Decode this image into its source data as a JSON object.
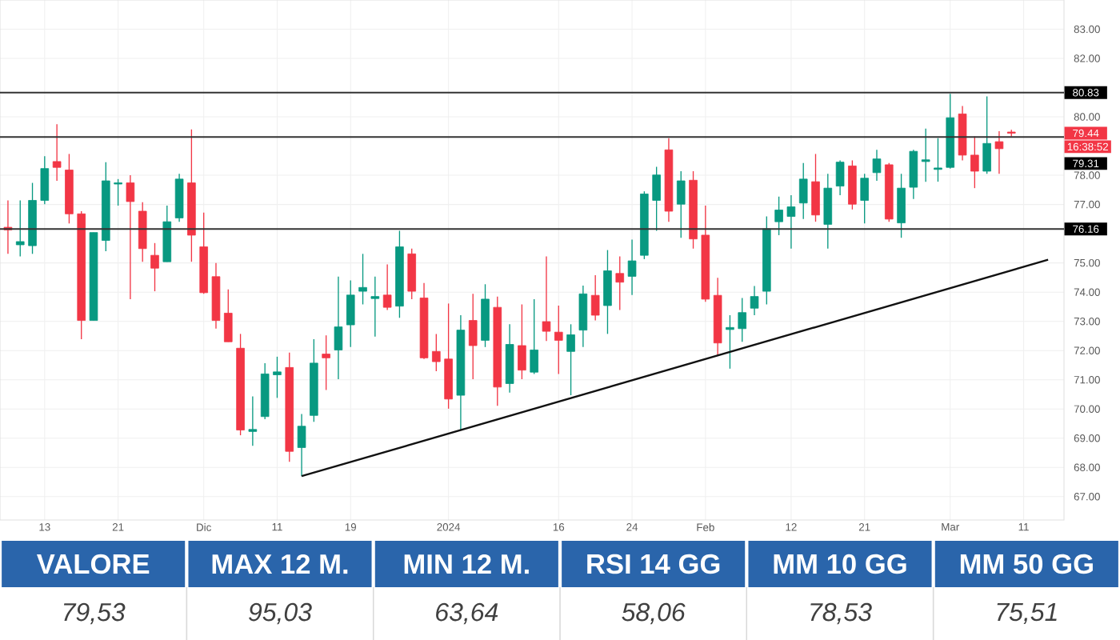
{
  "chart_data": {
    "type": "candlestick",
    "categories": [
      null,
      null,
      null,
      "13",
      null,
      null,
      null,
      null,
      null,
      "21",
      null,
      null,
      null,
      null,
      null,
      null,
      "Dic",
      null,
      null,
      null,
      null,
      null,
      "11",
      null,
      null,
      null,
      null,
      null,
      "19",
      null,
      null,
      null,
      null,
      null,
      null,
      null,
      "2024",
      null,
      null,
      null,
      null,
      null,
      null,
      null,
      null,
      "16",
      null,
      null,
      null,
      null,
      null,
      "24",
      null,
      null,
      null,
      null,
      null,
      "Feb",
      null,
      null,
      null,
      null,
      null,
      null,
      "12",
      null,
      null,
      null,
      null,
      null,
      "21",
      null,
      null,
      null,
      null,
      null,
      null,
      "Mar",
      null,
      null,
      null,
      null,
      null,
      "11",
      null,
      null,
      null
    ],
    "ohlc": [
      [
        76.22,
        77.14,
        75.31,
        76.13
      ],
      [
        75.62,
        77.14,
        75.22,
        75.73
      ],
      [
        75.59,
        77.74,
        75.31,
        77.14
      ],
      [
        77.14,
        78.65,
        77.01,
        78.23
      ],
      [
        78.47,
        79.75,
        77.81,
        78.27
      ],
      [
        78.18,
        78.73,
        76.35,
        76.68
      ],
      [
        76.68,
        76.77,
        72.39,
        73.03
      ],
      [
        73.03,
        76.04,
        73.03,
        76.04
      ],
      [
        75.77,
        78.45,
        75.4,
        77.81
      ],
      [
        77.7,
        77.87,
        76.96,
        77.74
      ],
      [
        77.74,
        78.0,
        73.76,
        77.1
      ],
      [
        76.77,
        77.08,
        75.04,
        75.49
      ],
      [
        75.26,
        75.68,
        74.03,
        74.82
      ],
      [
        75.04,
        76.96,
        75.04,
        76.41
      ],
      [
        76.54,
        78.05,
        76.41,
        77.87
      ],
      [
        77.74,
        79.57,
        75.04,
        75.95
      ],
      [
        75.55,
        76.72,
        73.94,
        73.98
      ],
      [
        74.53,
        75.0,
        72.75,
        73.03
      ],
      [
        73.28,
        74.09,
        72.3,
        72.3
      ],
      [
        72.08,
        72.57,
        69.1,
        69.28
      ],
      [
        69.23,
        70.43,
        68.74,
        69.3
      ],
      [
        69.74,
        71.57,
        69.65,
        71.2
      ],
      [
        71.17,
        71.79,
        70.38,
        71.27
      ],
      [
        71.42,
        71.93,
        68.19,
        68.55
      ],
      [
        68.68,
        69.83,
        67.7,
        69.41
      ],
      [
        69.78,
        72.39,
        69.56,
        71.57
      ],
      [
        71.88,
        72.52,
        70.65,
        71.75
      ],
      [
        72.02,
        74.53,
        71.02,
        72.81
      ],
      [
        72.88,
        74.4,
        72.12,
        73.9
      ],
      [
        74.03,
        75.31,
        73.58,
        74.16
      ],
      [
        73.78,
        74.53,
        72.48,
        73.85
      ],
      [
        73.9,
        74.95,
        73.39,
        73.48
      ],
      [
        73.52,
        76.1,
        73.12,
        75.55
      ],
      [
        75.31,
        75.49,
        73.76,
        74.03
      ],
      [
        73.8,
        74.31,
        71.71,
        71.75
      ],
      [
        71.97,
        72.57,
        71.29,
        71.62
      ],
      [
        71.71,
        73.61,
        70.01,
        70.34
      ],
      [
        70.47,
        73.21,
        69.28,
        72.7
      ],
      [
        73.03,
        73.94,
        71.02,
        72.17
      ],
      [
        72.35,
        74.27,
        72.12,
        73.76
      ],
      [
        73.48,
        73.85,
        70.11,
        70.75
      ],
      [
        70.87,
        72.9,
        70.56,
        72.21
      ],
      [
        72.17,
        73.58,
        71.02,
        71.33
      ],
      [
        71.26,
        73.76,
        71.2,
        72.02
      ],
      [
        72.99,
        75.22,
        72.33,
        72.66
      ],
      [
        72.63,
        73.54,
        71.2,
        72.35
      ],
      [
        71.97,
        72.9,
        70.47,
        72.54
      ],
      [
        72.7,
        74.22,
        72.12,
        73.94
      ],
      [
        73.89,
        74.58,
        73.03,
        73.21
      ],
      [
        73.54,
        75.44,
        72.57,
        74.73
      ],
      [
        74.64,
        75.22,
        73.39,
        74.34
      ],
      [
        74.54,
        75.8,
        73.9,
        75.07
      ],
      [
        75.26,
        77.45,
        75.13,
        77.36
      ],
      [
        77.14,
        78.29,
        76.1,
        78.01
      ],
      [
        78.87,
        79.27,
        76.41,
        76.77
      ],
      [
        77.01,
        78.14,
        75.86,
        77.81
      ],
      [
        77.83,
        78.14,
        75.49,
        75.82
      ],
      [
        75.95,
        76.96,
        73.67,
        73.76
      ],
      [
        73.89,
        74.49,
        71.84,
        72.26
      ],
      [
        72.72,
        73.21,
        71.38,
        72.79
      ],
      [
        72.75,
        73.8,
        72.3,
        73.3
      ],
      [
        73.45,
        74.21,
        73.21,
        73.85
      ],
      [
        74.03,
        76.59,
        73.58,
        76.17
      ],
      [
        76.41,
        77.27,
        75.95,
        76.81
      ],
      [
        76.59,
        77.32,
        75.49,
        76.92
      ],
      [
        77.05,
        78.42,
        76.5,
        77.87
      ],
      [
        77.78,
        78.73,
        76.41,
        76.64
      ],
      [
        76.32,
        78.05,
        75.49,
        77.56
      ],
      [
        77.63,
        78.51,
        77.32,
        78.45
      ],
      [
        78.32,
        78.51,
        76.83,
        77.01
      ],
      [
        77.14,
        78.05,
        76.35,
        77.9
      ],
      [
        78.09,
        78.87,
        77.81,
        78.56
      ],
      [
        78.36,
        78.42,
        76.41,
        76.5
      ],
      [
        76.37,
        78.05,
        75.86,
        77.56
      ],
      [
        77.59,
        78.87,
        77.19,
        78.82
      ],
      [
        78.47,
        79.6,
        77.78,
        78.53
      ],
      [
        78.2,
        79.27,
        77.78,
        78.25
      ],
      [
        78.27,
        80.79,
        78.23,
        79.97
      ],
      [
        80.1,
        80.37,
        78.51,
        78.69
      ],
      [
        78.69,
        79.33,
        77.56,
        78.14
      ],
      [
        78.14,
        80.7,
        78.05,
        79.09
      ],
      [
        79.15,
        79.51,
        78.05,
        78.91
      ],
      [
        79.48,
        79.56,
        79.33,
        79.44
      ],
      null,
      null,
      null,
      null
    ],
    "series": [
      {
        "type": "line",
        "color": "#111111",
        "values": [
          null,
          null,
          null,
          null,
          null,
          null,
          null,
          null,
          null,
          null,
          null,
          null,
          null,
          null,
          null,
          null,
          null,
          null,
          null,
          null,
          null,
          null,
          null,
          null,
          67.7,
          null,
          null,
          null,
          null,
          null,
          null,
          null,
          null,
          null,
          null,
          null,
          null,
          null,
          null,
          null,
          null,
          null,
          null,
          null,
          null,
          null,
          null,
          null,
          null,
          null,
          null,
          null,
          null,
          null,
          null,
          null,
          null,
          null,
          null,
          null,
          null,
          null,
          null,
          null,
          null,
          null,
          null,
          null,
          null,
          null,
          null,
          null,
          null,
          null,
          null,
          null,
          null,
          null,
          null,
          null,
          null,
          null,
          null,
          null,
          null,
          75.11,
          null
        ]
      }
    ],
    "ylim": [
      66.2,
      84.0
    ],
    "yticks": [
      {
        "value": 67,
        "label": "67.00"
      },
      {
        "value": 68,
        "label": "68.00"
      },
      {
        "value": 69,
        "label": "69.00"
      },
      {
        "value": 70,
        "label": "70.00"
      },
      {
        "value": 71,
        "label": "71.00"
      },
      {
        "value": 72,
        "label": "72.00"
      },
      {
        "value": 73,
        "label": "73.00"
      },
      {
        "value": 74,
        "label": "74.00"
      },
      {
        "value": 75,
        "label": "75.00"
      },
      {
        "value": 77,
        "label": "77.00"
      },
      {
        "value": 78,
        "label": "78.00"
      },
      {
        "value": 80,
        "label": "80.00"
      },
      {
        "value": 82,
        "label": "82.00"
      },
      {
        "value": 83,
        "label": "83.00"
      }
    ],
    "ref_lines": [
      {
        "axis": "y",
        "value": 80.83,
        "label": "80.83",
        "color": "#333333"
      },
      {
        "axis": "y",
        "value": 79.31,
        "label": "79.31",
        "color": "#333333"
      },
      {
        "axis": "y",
        "value": 76.16,
        "label": "76.16",
        "color": "#333333"
      }
    ],
    "grid": true,
    "annotations": [
      "VALORE",
      "79,53",
      "MAX 12 M.",
      "95,03",
      "MIN 12 M.",
      "63,64",
      "RSI 14 GG",
      "58,06",
      "MM 10 GG",
      "78,53",
      "MM 50 GG",
      "75,51",
      "79.44",
      "16:38:52"
    ]
  }
}
